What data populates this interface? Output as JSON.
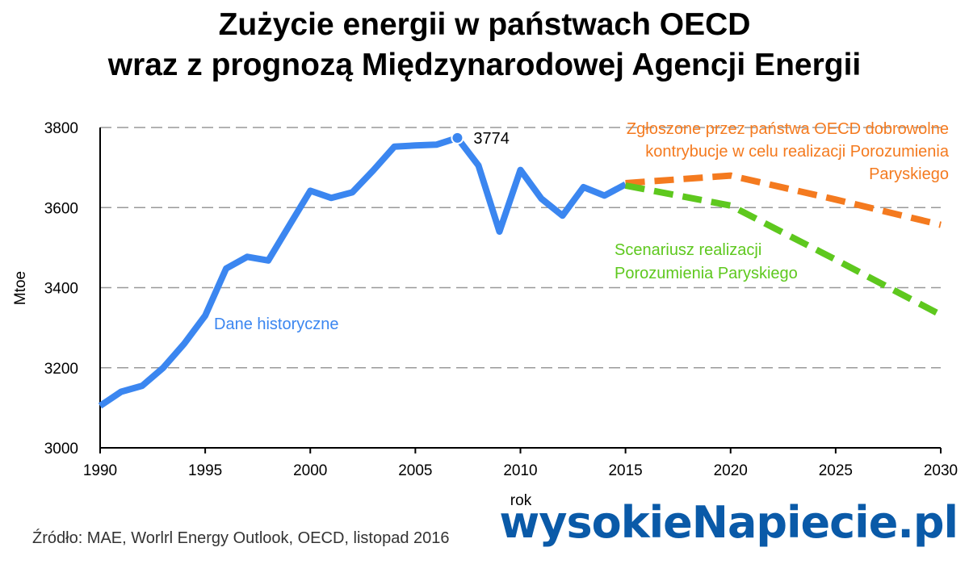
{
  "title_line1": "Zużycie energii w państwach OECD",
  "title_line2": "wraz z prognozą Międzynarodowej Agencji Energii",
  "source": "Źródło: MAE, Worlrl Energy Outlook, OECD, listopad 2016",
  "logo_text": "wysokieNapiecie.pl",
  "colors": {
    "historical": "#3b86f0",
    "oecd_pledges": "#f47a1f",
    "paris": "#5ec81e",
    "grid": "#999999"
  },
  "chart_data": {
    "type": "line",
    "xlabel": "rok",
    "ylabel": "Mtoe",
    "xlim": [
      1990,
      2030
    ],
    "ylim": [
      3000,
      3800
    ],
    "x_ticks": [
      "1990",
      "1995",
      "2000",
      "2005",
      "2010",
      "2015",
      "2020",
      "2025",
      "2030"
    ],
    "y_ticks": [
      "3000",
      "3200",
      "3400",
      "3600",
      "3800"
    ],
    "grid": "horizontal dashed",
    "series": [
      {
        "name": "Dane historyczne",
        "style": "solid",
        "color": "#3b86f0",
        "x": [
          1990,
          1991,
          1992,
          1993,
          1994,
          1995,
          1996,
          1997,
          1998,
          1999,
          2000,
          2001,
          2002,
          2003,
          2004,
          2005,
          2006,
          2007,
          2008,
          2009,
          2010,
          2011,
          2012,
          2013,
          2014,
          2015
        ],
        "y": [
          3105,
          3140,
          3155,
          3200,
          3260,
          3330,
          3448,
          3477,
          3468,
          3555,
          3642,
          3624,
          3638,
          3693,
          3752,
          3755,
          3757,
          3774,
          3705,
          3540,
          3694,
          3622,
          3580,
          3651,
          3630,
          3658
        ]
      },
      {
        "name": "Zgłoszone przez państwa OECD dobrowolne kontrybucje w celu realizacji Porozumienia Paryskiego",
        "style": "dashed",
        "color": "#f47a1f",
        "x": [
          2015,
          2020,
          2025,
          2030
        ],
        "y": [
          3661,
          3680,
          3620,
          3557
        ]
      },
      {
        "name": "Scenariusz realizacji Porozumienia Paryskiego",
        "style": "dashed",
        "color": "#5ec81e",
        "x": [
          2015,
          2020,
          2025,
          2030
        ],
        "y": [
          3655,
          3605,
          3470,
          3332
        ]
      }
    ],
    "annotations": [
      {
        "text": "3774",
        "x": 2007,
        "y": 3774,
        "marker": "circle"
      }
    ],
    "labels": {
      "historical": "Dane historyczne",
      "orange_lines": [
        "Zgłoszone przez państwa OECD dobrowolne",
        "kontrybucje w celu realizacji Porozumienia",
        "Paryskiego"
      ],
      "green_lines": [
        "Scenariusz realizacji",
        "Porozumienia Paryskiego"
      ]
    }
  }
}
